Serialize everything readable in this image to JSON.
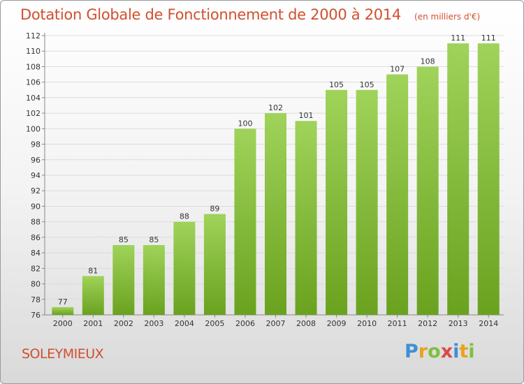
{
  "title": "Dotation Globale de Fonctionnement de 2000 à 2014",
  "unit_note": "(en milliers d'€)",
  "commune": "SOLEYMIEUX",
  "brand": {
    "letters": [
      "P",
      "r",
      "o",
      "x",
      "i",
      "t",
      "i"
    ],
    "colors": [
      "#3f8fd6",
      "#e8a21c",
      "#7fbf3f",
      "#d94a4a",
      "#3f8fd6",
      "#e8a21c",
      "#7fbf3f"
    ]
  },
  "colors": {
    "bar_light": "#9fd35a",
    "bar_dark": "#6aa21f",
    "title": "#d14f2e"
  },
  "chart_data": {
    "type": "bar",
    "categories": [
      "2000",
      "2001",
      "2002",
      "2003",
      "2004",
      "2005",
      "2006",
      "2007",
      "2008",
      "2009",
      "2010",
      "2011",
      "2012",
      "2013",
      "2014"
    ],
    "values": [
      77,
      81,
      85,
      85,
      88,
      89,
      100,
      102,
      101,
      105,
      105,
      107,
      108,
      111,
      111
    ],
    "data_labels": [
      "77",
      "81",
      "85",
      "85",
      "88",
      "89",
      "100",
      "102",
      "101",
      "105",
      "105",
      "107",
      "108",
      "111",
      "111"
    ],
    "yticks": [
      "76",
      "78",
      "80",
      "82",
      "84",
      "86",
      "88",
      "90",
      "92",
      "94",
      "96",
      "98",
      "100",
      "102",
      "104",
      "106",
      "108",
      "110",
      "112"
    ],
    "ylim": [
      76,
      112
    ],
    "grid": true,
    "xlabel": "",
    "ylabel": ""
  }
}
